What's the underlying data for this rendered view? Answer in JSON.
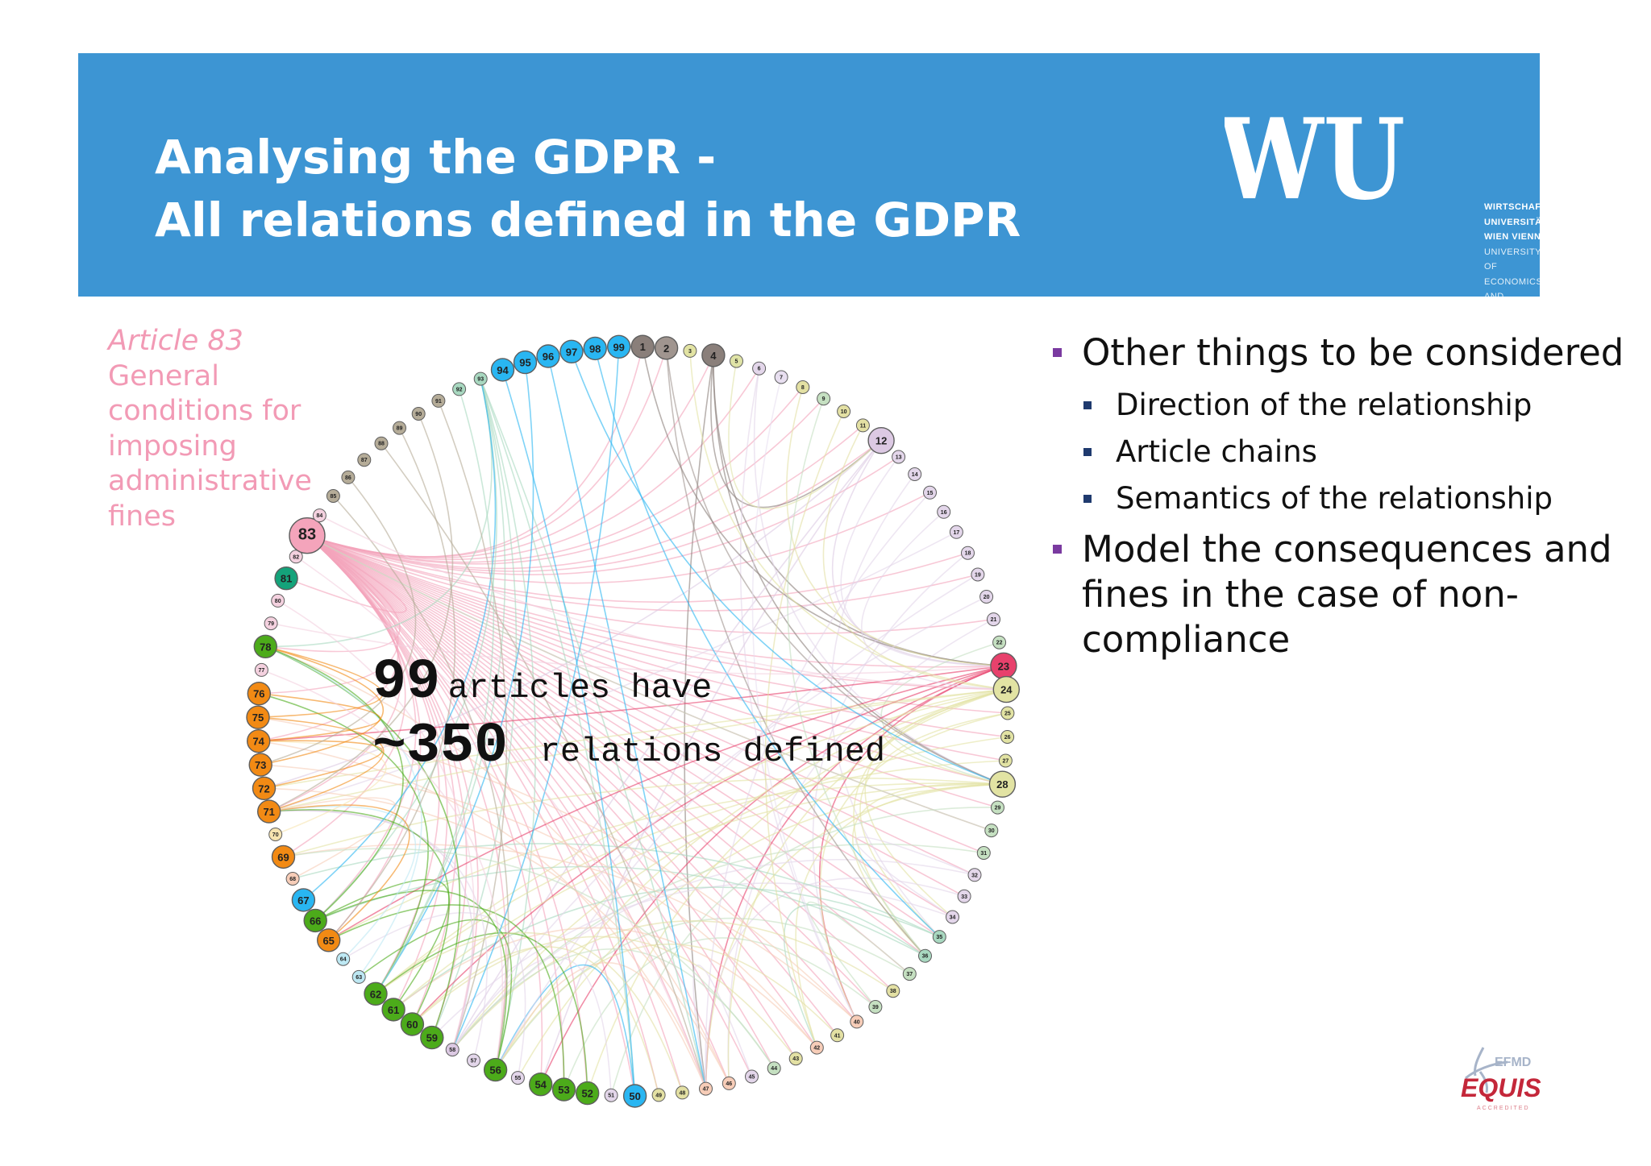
{
  "header": {
    "title_line1": "Analysing the GDPR -",
    "title_line2": "All relations defined in the GDPR",
    "logo": {
      "mark": "WU",
      "lines": [
        "WIRTSCHAFTS",
        "UNIVERSITÄT",
        "WIEN VIENNA",
        "UNIVERSITY OF",
        "ECONOMICS",
        "AND BUSINESS"
      ]
    }
  },
  "highlight": {
    "article": "Article 83",
    "description": [
      "General",
      "conditions for",
      "imposing",
      "administrative",
      "fines"
    ]
  },
  "stats": {
    "articles_count": "99",
    "articles_text": "articles have",
    "relations_count": "~350",
    "relations_text": "relations defined"
  },
  "bullets": [
    {
      "text": "Other things to be considered",
      "sub": [
        "Direction of the relationship",
        "Article chains",
        "Semantics of the relationship"
      ]
    },
    {
      "text": "Model the consequences and fines in the case of non-compliance",
      "sub": []
    }
  ],
  "chart_data": {
    "type": "chord",
    "node_count": 99,
    "nodes": [
      {
        "id": 1,
        "color": "#8a7f7a",
        "big": true
      },
      {
        "id": 2,
        "color": "#a0958f",
        "big": true
      },
      {
        "id": 3,
        "color": "#e2e3a3",
        "big": false
      },
      {
        "id": 4,
        "color": "#8a7f7a",
        "big": true
      },
      {
        "id": 5,
        "color": "#dfe3a6",
        "big": false
      },
      {
        "id": 6,
        "color": "#e3d6ea",
        "big": false
      },
      {
        "id": 7,
        "color": "#e8dff0",
        "big": false
      },
      {
        "id": 8,
        "color": "#e3e0a3",
        "big": false
      },
      {
        "id": 9,
        "color": "#c5e0c1",
        "big": false
      },
      {
        "id": 10,
        "color": "#e3e0a3",
        "big": false
      },
      {
        "id": 11,
        "color": "#e3e0a3",
        "big": false
      },
      {
        "id": 12,
        "color": "#dcc9e3",
        "big": true
      },
      {
        "id": 13,
        "color": "#e3d6ea",
        "big": false
      },
      {
        "id": 14,
        "color": "#e3d6ea",
        "big": false
      },
      {
        "id": 15,
        "color": "#e3d6ea",
        "big": false
      },
      {
        "id": 16,
        "color": "#e3d6ea",
        "big": false
      },
      {
        "id": 17,
        "color": "#e3d6ea",
        "big": false
      },
      {
        "id": 18,
        "color": "#e3d6ea",
        "big": false
      },
      {
        "id": 19,
        "color": "#e3d6ea",
        "big": false
      },
      {
        "id": 20,
        "color": "#e3d6ea",
        "big": false
      },
      {
        "id": 21,
        "color": "#e3d6ea",
        "big": false
      },
      {
        "id": 22,
        "color": "#c5e0c1",
        "big": false
      },
      {
        "id": 23,
        "color": "#e8416c",
        "big": true
      },
      {
        "id": 24,
        "color": "#e2e3a3",
        "big": true
      },
      {
        "id": 25,
        "color": "#e2e3a3",
        "big": false
      },
      {
        "id": 26,
        "color": "#e2e3a3",
        "big": false
      },
      {
        "id": 27,
        "color": "#e2e3a3",
        "big": false
      },
      {
        "id": 28,
        "color": "#e2e3a3",
        "big": true
      },
      {
        "id": 29,
        "color": "#c5e0c1",
        "big": false
      },
      {
        "id": 30,
        "color": "#c5e0c1",
        "big": false
      },
      {
        "id": 31,
        "color": "#c5e0c1",
        "big": false
      },
      {
        "id": 32,
        "color": "#e3d6ea",
        "big": false
      },
      {
        "id": 33,
        "color": "#e3d6ea",
        "big": false
      },
      {
        "id": 34,
        "color": "#e3d6ea",
        "big": false
      },
      {
        "id": 35,
        "color": "#a8d8c0",
        "big": false
      },
      {
        "id": 36,
        "color": "#a8d8c0",
        "big": false
      },
      {
        "id": 37,
        "color": "#c5e0c1",
        "big": false
      },
      {
        "id": 38,
        "color": "#e3e0a3",
        "big": false
      },
      {
        "id": 39,
        "color": "#c5e0c1",
        "big": false
      },
      {
        "id": 40,
        "color": "#f7cdb8",
        "big": false
      },
      {
        "id": 41,
        "color": "#e3e0a3",
        "big": false
      },
      {
        "id": 42,
        "color": "#f7cdb8",
        "big": false
      },
      {
        "id": 43,
        "color": "#e3e0a3",
        "big": false
      },
      {
        "id": 44,
        "color": "#c5e0c1",
        "big": false
      },
      {
        "id": 45,
        "color": "#e3d6ea",
        "big": false
      },
      {
        "id": 46,
        "color": "#f7cdb8",
        "big": false
      },
      {
        "id": 47,
        "color": "#f7cdb8",
        "big": false
      },
      {
        "id": 48,
        "color": "#e3e0a3",
        "big": false
      },
      {
        "id": 49,
        "color": "#e3e0a3",
        "big": false
      },
      {
        "id": 50,
        "color": "#29b6f2",
        "big": true
      },
      {
        "id": 51,
        "color": "#e3d6ea",
        "big": false
      },
      {
        "id": 52,
        "color": "#4cab1a",
        "big": true
      },
      {
        "id": 53,
        "color": "#4cab1a",
        "big": true
      },
      {
        "id": 54,
        "color": "#4cab1a",
        "big": true
      },
      {
        "id": 55,
        "color": "#e3d6ea",
        "big": false
      },
      {
        "id": 56,
        "color": "#4cab1a",
        "big": true
      },
      {
        "id": 57,
        "color": "#e3d6ea",
        "big": false
      },
      {
        "id": 58,
        "color": "#dcc9e3",
        "big": false
      },
      {
        "id": 59,
        "color": "#4cab1a",
        "big": true
      },
      {
        "id": 60,
        "color": "#4cab1a",
        "big": true
      },
      {
        "id": 61,
        "color": "#4cab1a",
        "big": true
      },
      {
        "id": 62,
        "color": "#4cab1a",
        "big": true
      },
      {
        "id": 63,
        "color": "#bde8f3",
        "big": false
      },
      {
        "id": 64,
        "color": "#bde8f3",
        "big": false
      },
      {
        "id": 65,
        "color": "#f28a14",
        "big": true
      },
      {
        "id": 66,
        "color": "#4cab1a",
        "big": true
      },
      {
        "id": 67,
        "color": "#29b6f2",
        "big": true
      },
      {
        "id": 68,
        "color": "#f7cdb8",
        "big": false
      },
      {
        "id": 69,
        "color": "#f28a14",
        "big": true
      },
      {
        "id": 70,
        "color": "#f7e4b0",
        "big": false
      },
      {
        "id": 71,
        "color": "#f28a14",
        "big": true
      },
      {
        "id": 72,
        "color": "#f28a14",
        "big": true
      },
      {
        "id": 73,
        "color": "#f28a14",
        "big": true
      },
      {
        "id": 74,
        "color": "#f28a14",
        "big": true
      },
      {
        "id": 75,
        "color": "#f28a14",
        "big": true
      },
      {
        "id": 76,
        "color": "#f28a14",
        "big": true
      },
      {
        "id": 77,
        "color": "#f4d1df",
        "big": false
      },
      {
        "id": 78,
        "color": "#4cab1a",
        "big": true
      },
      {
        "id": 79,
        "color": "#f4d1df",
        "big": false
      },
      {
        "id": 80,
        "color": "#f4d1df",
        "big": false
      },
      {
        "id": 81,
        "color": "#14a37a",
        "big": true
      },
      {
        "id": 82,
        "color": "#f4d1df",
        "big": false
      },
      {
        "id": 83,
        "color": "#f4a4bb",
        "big": true
      },
      {
        "id": 84,
        "color": "#f4d1df",
        "big": false
      },
      {
        "id": 85,
        "color": "#b5ac98",
        "big": false
      },
      {
        "id": 86,
        "color": "#b5ac98",
        "big": false
      },
      {
        "id": 87,
        "color": "#b5ac98",
        "big": false
      },
      {
        "id": 88,
        "color": "#b5ac98",
        "big": false
      },
      {
        "id": 89,
        "color": "#b5ac98",
        "big": false
      },
      {
        "id": 90,
        "color": "#b5ac98",
        "big": false
      },
      {
        "id": 91,
        "color": "#b5ac98",
        "big": false
      },
      {
        "id": 92,
        "color": "#a8d8c0",
        "big": false
      },
      {
        "id": 93,
        "color": "#a8d8c0",
        "big": false
      },
      {
        "id": 94,
        "color": "#29b6f2",
        "big": true
      },
      {
        "id": 95,
        "color": "#29b6f2",
        "big": true
      },
      {
        "id": 96,
        "color": "#29b6f2",
        "big": true
      },
      {
        "id": 97,
        "color": "#29b6f2",
        "big": true
      },
      {
        "id": 98,
        "color": "#29b6f2",
        "big": true
      },
      {
        "id": 99,
        "color": "#29b6f2",
        "big": true
      }
    ],
    "edges": [
      [
        83,
        12
      ],
      [
        83,
        23
      ],
      [
        83,
        24
      ],
      [
        83,
        28
      ],
      [
        83,
        4
      ],
      [
        83,
        2
      ],
      [
        83,
        1
      ],
      [
        83,
        6
      ],
      [
        83,
        8
      ],
      [
        83,
        11
      ],
      [
        83,
        13
      ],
      [
        83,
        18
      ],
      [
        83,
        21
      ],
      [
        83,
        25
      ],
      [
        83,
        26
      ],
      [
        83,
        27
      ],
      [
        83,
        29
      ],
      [
        83,
        30
      ],
      [
        83,
        32
      ],
      [
        83,
        33
      ],
      [
        83,
        35
      ],
      [
        83,
        36
      ],
      [
        83,
        37
      ],
      [
        83,
        38
      ],
      [
        83,
        39
      ],
      [
        83,
        40
      ],
      [
        83,
        41
      ],
      [
        83,
        42
      ],
      [
        83,
        43
      ],
      [
        83,
        44
      ],
      [
        83,
        45
      ],
      [
        83,
        46
      ],
      [
        83,
        47
      ],
      [
        83,
        48
      ],
      [
        83,
        49
      ],
      [
        83,
        50
      ],
      [
        83,
        52
      ],
      [
        83,
        53
      ],
      [
        83,
        54
      ],
      [
        83,
        56
      ],
      [
        83,
        58
      ],
      [
        83,
        59
      ],
      [
        83,
        60
      ],
      [
        83,
        61
      ],
      [
        83,
        62
      ],
      [
        83,
        65
      ],
      [
        83,
        66
      ],
      [
        83,
        69
      ],
      [
        83,
        71
      ],
      [
        83,
        74
      ],
      [
        83,
        76
      ],
      [
        83,
        78
      ],
      [
        83,
        81
      ],
      [
        83,
        9
      ],
      [
        83,
        15
      ],
      [
        83,
        19
      ],
      [
        83,
        31
      ],
      [
        83,
        34
      ],
      [
        93,
        56
      ],
      [
        93,
        62
      ],
      [
        93,
        50
      ],
      [
        93,
        78
      ],
      [
        93,
        66
      ],
      [
        93,
        59
      ],
      [
        93,
        47
      ],
      [
        4,
        23
      ],
      [
        4,
        28
      ],
      [
        4,
        12
      ],
      [
        4,
        47
      ],
      [
        6,
        28
      ],
      [
        6,
        40
      ],
      [
        12,
        23
      ],
      [
        12,
        58
      ],
      [
        12,
        54
      ],
      [
        12,
        72
      ],
      [
        13,
        23
      ],
      [
        14,
        35
      ],
      [
        17,
        71
      ],
      [
        18,
        40
      ],
      [
        21,
        46
      ],
      [
        22,
        28
      ],
      [
        23,
        47
      ],
      [
        23,
        60
      ],
      [
        23,
        54
      ],
      [
        23,
        74
      ],
      [
        23,
        65
      ],
      [
        23,
        40
      ],
      [
        24,
        28
      ],
      [
        24,
        52
      ],
      [
        24,
        56
      ],
      [
        24,
        62
      ],
      [
        24,
        46
      ],
      [
        24,
        34
      ],
      [
        24,
        71
      ],
      [
        24,
        36
      ],
      [
        24,
        72
      ],
      [
        25,
        35
      ],
      [
        25,
        40
      ],
      [
        26,
        58
      ],
      [
        27,
        62
      ],
      [
        28,
        61
      ],
      [
        28,
        55
      ],
      [
        28,
        69
      ],
      [
        28,
        65
      ],
      [
        28,
        36
      ],
      [
        28,
        47
      ],
      [
        28,
        42
      ],
      [
        29,
        51
      ],
      [
        30,
        83
      ],
      [
        31,
        58
      ],
      [
        32,
        34
      ],
      [
        32,
        58
      ],
      [
        33,
        47
      ],
      [
        34,
        59
      ],
      [
        35,
        61
      ],
      [
        35,
        68
      ],
      [
        36,
        66
      ],
      [
        36,
        42
      ],
      [
        37,
        56
      ],
      [
        37,
        39
      ],
      [
        38,
        58
      ],
      [
        39,
        53
      ],
      [
        40,
        69
      ],
      [
        40,
        75
      ],
      [
        41,
        56
      ],
      [
        42,
        73
      ],
      [
        42,
        61
      ],
      [
        43,
        60
      ],
      [
        44,
        58
      ],
      [
        45,
        47
      ],
      [
        46,
        72
      ],
      [
        46,
        78
      ],
      [
        47,
        56
      ],
      [
        47,
        74
      ],
      [
        49,
        60
      ],
      [
        50,
        56
      ],
      [
        51,
        58
      ],
      [
        52,
        62
      ],
      [
        53,
        65
      ],
      [
        55,
        64
      ],
      [
        56,
        66
      ],
      [
        56,
        63
      ],
      [
        57,
        71
      ],
      [
        58,
        71
      ],
      [
        59,
        78
      ],
      [
        60,
        71
      ],
      [
        61,
        66
      ],
      [
        62,
        76
      ],
      [
        63,
        78
      ],
      [
        64,
        71
      ],
      [
        65,
        71
      ],
      [
        66,
        78
      ],
      [
        67,
        93
      ],
      [
        68,
        71
      ],
      [
        70,
        74
      ],
      [
        71,
        75
      ],
      [
        72,
        74
      ],
      [
        73,
        78
      ],
      [
        74,
        76
      ],
      [
        75,
        78
      ],
      [
        2,
        28
      ],
      [
        2,
        36
      ],
      [
        1,
        23
      ],
      [
        3,
        24
      ],
      [
        5,
        12
      ],
      [
        7,
        40
      ],
      [
        8,
        23
      ],
      [
        9,
        36
      ],
      [
        10,
        42
      ],
      [
        11,
        24
      ],
      [
        15,
        47
      ],
      [
        16,
        24
      ],
      [
        19,
        56
      ],
      [
        20,
        58
      ],
      [
        94,
        50
      ],
      [
        95,
        62
      ],
      [
        96,
        47
      ],
      [
        97,
        28
      ],
      [
        98,
        35
      ],
      [
        99,
        58
      ],
      [
        88,
        47
      ],
      [
        89,
        65
      ],
      [
        90,
        71
      ],
      [
        91,
        58
      ],
      [
        92,
        62
      ],
      [
        86,
        73
      ],
      [
        85,
        56
      ],
      [
        84,
        24
      ],
      [
        82,
        47
      ],
      [
        80,
        58
      ],
      [
        79,
        23
      ],
      [
        77,
        56
      ],
      [
        48,
        62
      ],
      [
        44,
        69
      ]
    ]
  }
}
